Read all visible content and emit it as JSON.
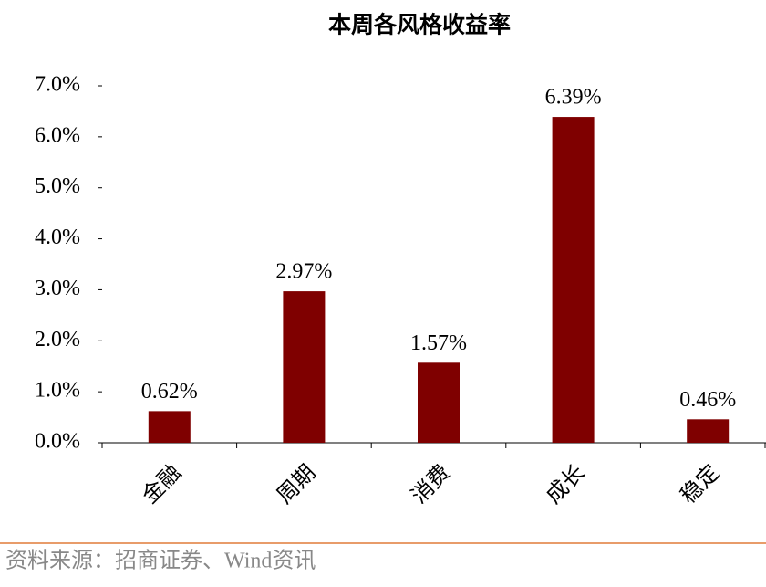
{
  "chart_data": {
    "type": "bar",
    "title": "本周各风格收益率",
    "categories": [
      "金融",
      "周期",
      "消费",
      "成长",
      "稳定"
    ],
    "values": [
      0.62,
      2.97,
      1.57,
      6.39,
      0.46
    ],
    "value_labels": [
      "0.62%",
      "2.97%",
      "1.57%",
      "6.39%",
      "0.46%"
    ],
    "color": "#7f0000",
    "ylim": [
      0,
      7
    ],
    "yticks": [
      {
        "value": 0,
        "label": "0.0%"
      },
      {
        "value": 1,
        "label": "1.0%"
      },
      {
        "value": 2,
        "label": "2.0%"
      },
      {
        "value": 3,
        "label": "3.0%"
      },
      {
        "value": 4,
        "label": "4.0%"
      },
      {
        "value": 5,
        "label": "5.0%"
      },
      {
        "value": 6,
        "label": "6.0%"
      },
      {
        "value": 7,
        "label": "7.0%"
      }
    ],
    "grid": false,
    "source": "资料来源：招商证券、Wind资讯"
  }
}
